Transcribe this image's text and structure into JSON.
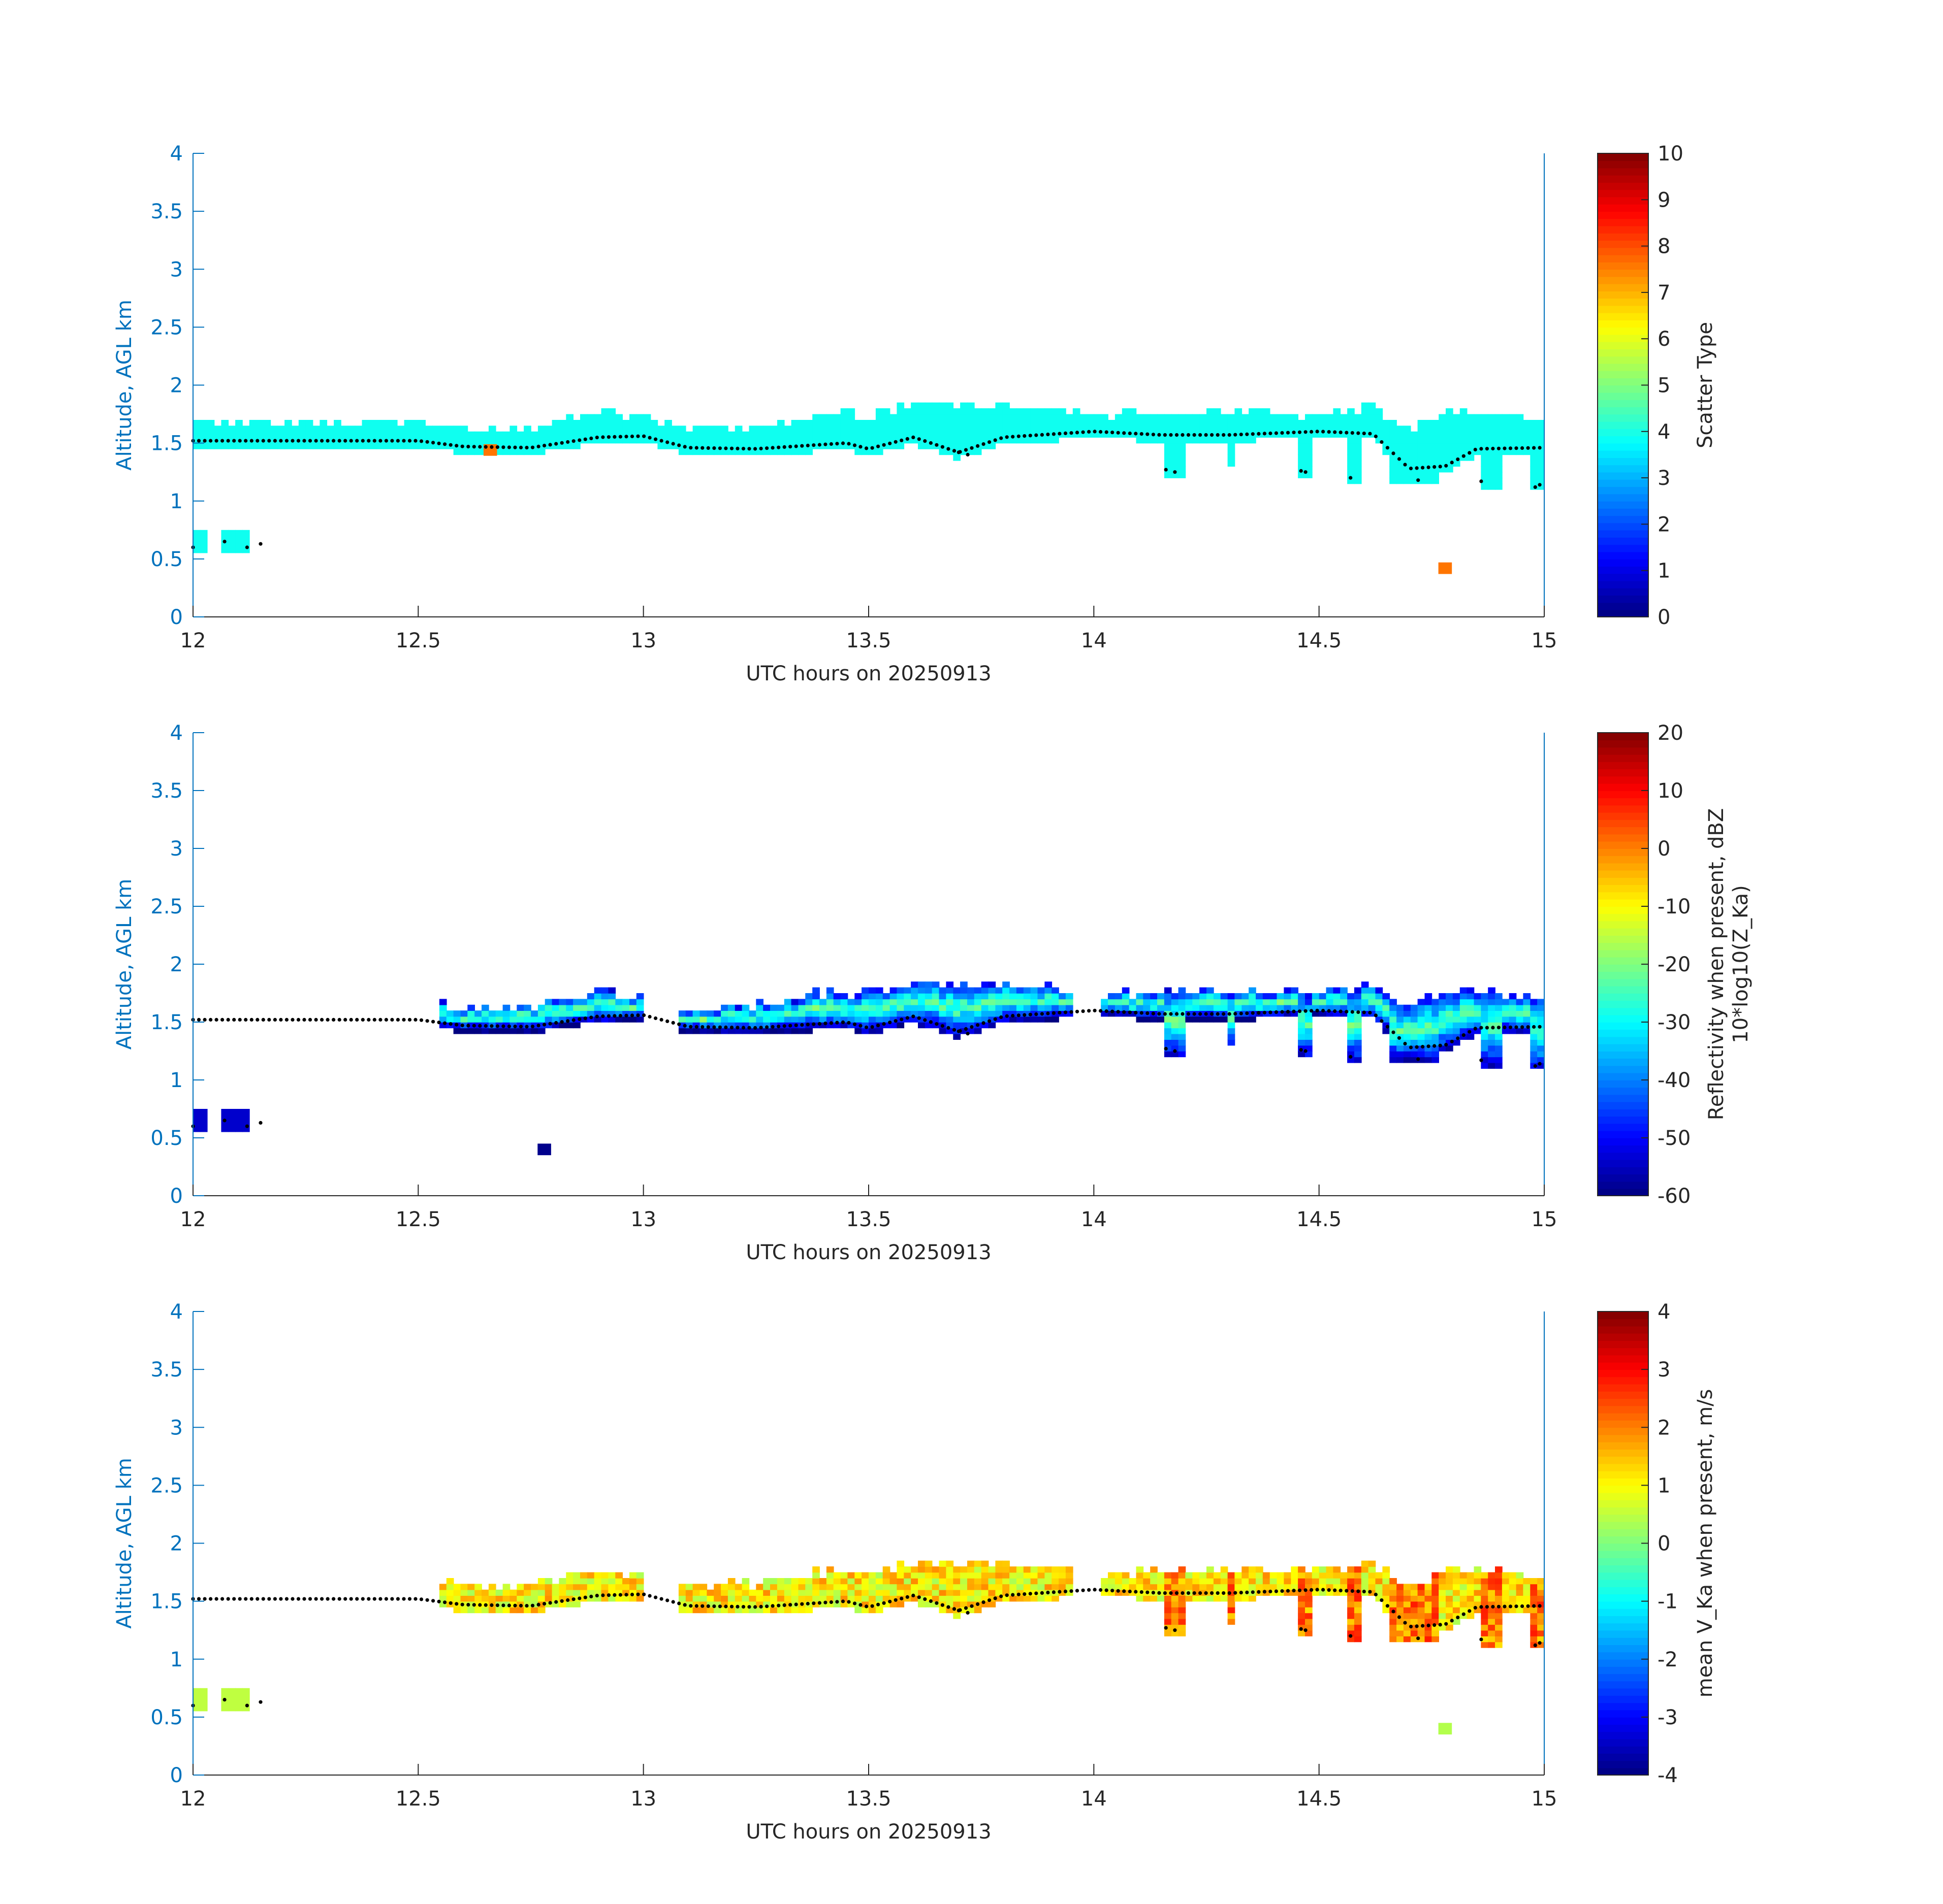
{
  "figure": {
    "xlabel": "UTC hours on 20250913",
    "ylabel": "Altitude, AGL km",
    "xticks": [
      "12",
      "12.5",
      "13",
      "13.5",
      "14",
      "14.5",
      "15"
    ],
    "yticks": [
      "0",
      "0.5",
      "1",
      "1.5",
      "2",
      "2.5",
      "3",
      "3.5",
      "4"
    ],
    "axis_color": "#0072BD",
    "text_color": "#262626"
  },
  "chart_data": [
    {
      "type": "heatmap",
      "title": "",
      "xlabel": "UTC hours on 20250913",
      "ylabel": "Altitude, AGL km",
      "xlim": [
        12,
        15
      ],
      "ylim": [
        0,
        4
      ],
      "colormap": "jet",
      "colorbar": {
        "label": "Scatter Type",
        "label2": "",
        "clim": [
          0,
          10
        ],
        "ticks": [
          "0",
          "1",
          "2",
          "3",
          "4",
          "5",
          "6",
          "7",
          "8",
          "9",
          "10"
        ]
      },
      "field": "scatter",
      "cloud_value": 3.9,
      "outliers": [
        {
          "x": 12.66,
          "y": 1.44,
          "value": 7.6
        },
        {
          "x": 14.78,
          "y": 0.42,
          "value": 7.6
        }
      ]
    },
    {
      "type": "heatmap",
      "title": "",
      "xlabel": "UTC hours on 20250913",
      "ylabel": "Altitude, AGL km",
      "xlim": [
        12,
        15
      ],
      "ylim": [
        0,
        4
      ],
      "colormap": "jet",
      "colorbar": {
        "label": "Reflectivity when present, dBZ",
        "label2": "10*log10(Z_Ka)",
        "clim": [
          -60,
          20
        ],
        "ticks": [
          "-60",
          "-50",
          "-40",
          "-30",
          "-20",
          "-10",
          "0",
          "10",
          "20"
        ]
      },
      "field": "reflectivity",
      "outliers": [
        {
          "x": 12.78,
          "y": 0.4,
          "value": -59
        }
      ]
    },
    {
      "type": "heatmap",
      "title": "",
      "xlabel": "UTC hours on 20250913",
      "ylabel": "Altitude, AGL km",
      "xlim": [
        12,
        15
      ],
      "ylim": [
        0,
        4
      ],
      "colormap": "jet",
      "colorbar": {
        "label": "mean V_Ka when present, m/s",
        "label2": "",
        "clim": [
          -4,
          4
        ],
        "ticks": [
          "-4",
          "-3",
          "-2",
          "-1",
          "0",
          "1",
          "2",
          "3",
          "4"
        ]
      },
      "field": "velocity",
      "outliers": [
        {
          "x": 14.78,
          "y": 0.4,
          "value": 0.4
        }
      ]
    }
  ],
  "cloud": {
    "base_km": [
      [
        12.0,
        1.52
      ],
      [
        12.5,
        1.52
      ],
      [
        12.6,
        1.47
      ],
      [
        12.75,
        1.46
      ],
      [
        12.9,
        1.55
      ],
      [
        13.0,
        1.56
      ],
      [
        13.1,
        1.46
      ],
      [
        13.25,
        1.45
      ],
      [
        13.45,
        1.5
      ],
      [
        13.5,
        1.45
      ],
      [
        13.6,
        1.55
      ],
      [
        13.7,
        1.42
      ],
      [
        13.8,
        1.55
      ],
      [
        14.0,
        1.6
      ],
      [
        14.15,
        1.57
      ],
      [
        14.3,
        1.57
      ],
      [
        14.5,
        1.6
      ],
      [
        14.62,
        1.58
      ],
      [
        14.7,
        1.28
      ],
      [
        14.78,
        1.3
      ],
      [
        14.85,
        1.45
      ],
      [
        15.0,
        1.46
      ]
    ],
    "top_km": [
      [
        12.0,
        1.66
      ],
      [
        12.5,
        1.66
      ],
      [
        12.6,
        1.6
      ],
      [
        12.75,
        1.6
      ],
      [
        12.9,
        1.75
      ],
      [
        13.0,
        1.68
      ],
      [
        13.1,
        1.6
      ],
      [
        13.25,
        1.62
      ],
      [
        13.4,
        1.73
      ],
      [
        13.5,
        1.72
      ],
      [
        13.6,
        1.8
      ],
      [
        13.8,
        1.8
      ],
      [
        14.0,
        1.72
      ],
      [
        14.3,
        1.75
      ],
      [
        14.5,
        1.73
      ],
      [
        14.62,
        1.8
      ],
      [
        14.7,
        1.6
      ],
      [
        14.8,
        1.75
      ],
      [
        14.9,
        1.73
      ],
      [
        15.0,
        1.68
      ]
    ],
    "radar_start_x": 12.54,
    "radar_gaps": [
      [
        12.2,
        12.3
      ],
      [
        13.0,
        13.08
      ],
      [
        13.95,
        14.02
      ]
    ],
    "tails": [
      {
        "x": 14.16,
        "w": 0.05,
        "bottom": 1.22
      },
      {
        "x": 14.3,
        "w": 0.02,
        "bottom": 1.3
      },
      {
        "x": 14.46,
        "w": 0.03,
        "bottom": 1.22
      },
      {
        "x": 14.57,
        "w": 0.02,
        "bottom": 1.18
      },
      {
        "x": 14.66,
        "w": 0.1,
        "bottom": 1.18
      },
      {
        "x": 14.86,
        "w": 0.04,
        "bottom": 1.15
      },
      {
        "x": 14.97,
        "w": 0.03,
        "bottom": 1.1
      }
    ],
    "low_patch": {
      "x0": 12.0,
      "x1": 12.16,
      "y0": 0.55,
      "y1": 0.75
    }
  },
  "ceilometer": {
    "points": [
      [
        12.0,
        1.52
      ],
      [
        12.5,
        1.52
      ],
      [
        12.6,
        1.47
      ],
      [
        12.75,
        1.46
      ],
      [
        12.9,
        1.55
      ],
      [
        13.0,
        1.56
      ],
      [
        13.1,
        1.46
      ],
      [
        13.25,
        1.45
      ],
      [
        13.45,
        1.5
      ],
      [
        13.5,
        1.45
      ],
      [
        13.6,
        1.55
      ],
      [
        13.7,
        1.42
      ],
      [
        13.8,
        1.55
      ],
      [
        14.0,
        1.6
      ],
      [
        14.15,
        1.57
      ],
      [
        14.3,
        1.57
      ],
      [
        14.5,
        1.6
      ],
      [
        14.62,
        1.58
      ],
      [
        14.7,
        1.28
      ],
      [
        14.78,
        1.3
      ],
      [
        14.85,
        1.45
      ],
      [
        15.0,
        1.46
      ]
    ],
    "low_points": [
      [
        12.0,
        0.6
      ],
      [
        12.07,
        0.65
      ],
      [
        12.12,
        0.6
      ],
      [
        12.15,
        0.63
      ]
    ],
    "outliers": [
      [
        13.7,
        1.42
      ],
      [
        13.72,
        1.4
      ],
      [
        14.16,
        1.27
      ],
      [
        14.18,
        1.25
      ],
      [
        14.46,
        1.26
      ],
      [
        14.47,
        1.25
      ],
      [
        14.57,
        1.2
      ],
      [
        14.72,
        1.18
      ],
      [
        14.86,
        1.17
      ],
      [
        14.98,
        1.12
      ],
      [
        14.99,
        1.14
      ]
    ]
  }
}
